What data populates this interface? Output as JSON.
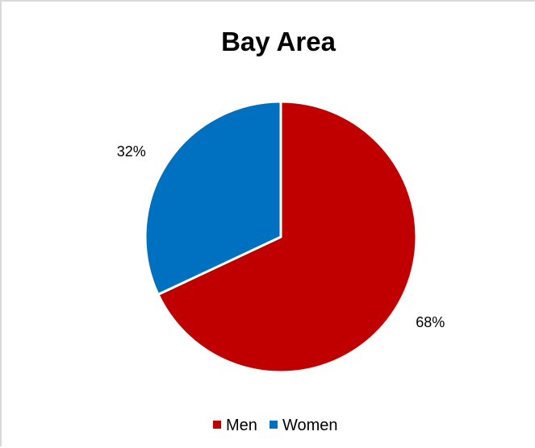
{
  "chart_data": {
    "type": "pie",
    "title": "Bay Area",
    "categories": [
      "Men",
      "Women"
    ],
    "values": [
      68,
      32
    ],
    "data_labels": [
      "68%",
      "32%"
    ],
    "colors": [
      "#C00000",
      "#0070C0"
    ],
    "legend": {
      "position": "bottom",
      "entries": [
        "Men",
        "Women"
      ]
    }
  }
}
